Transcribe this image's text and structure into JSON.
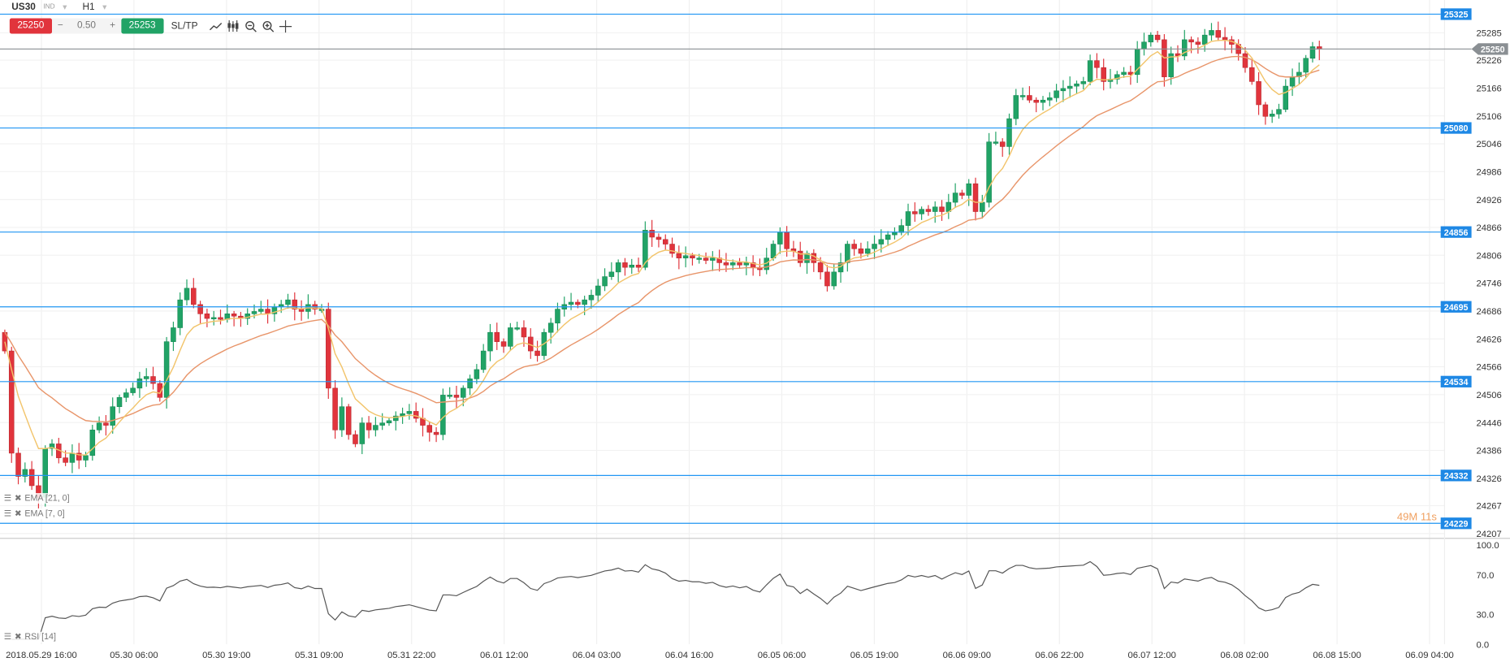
{
  "header": {
    "symbol": "US30",
    "type": "IND",
    "timeframe": "H1"
  },
  "trade": {
    "sell_price": "25250",
    "spread": "0.50",
    "minus": "−",
    "plus": "+",
    "buy_price": "25253",
    "sltp_label": "SL/TP"
  },
  "tools": [
    "line-chart-icon",
    "candles-icon",
    "zoom-out-icon",
    "zoom-in-icon",
    "crosshair-icon"
  ],
  "indicators": [
    {
      "label": "EMA [21, 0]",
      "period": 21,
      "color": "#e8956a"
    },
    {
      "label": "EMA [7, 0]",
      "period": 7,
      "color": "#f2c46b"
    }
  ],
  "rsi": {
    "label": "RSI [14]",
    "period": 14,
    "levels": [
      "100.0",
      "70.0",
      "30.0",
      "0.0"
    ]
  },
  "colors": {
    "up": "#21a366",
    "down": "#e1343c",
    "level_line": "#2196f3",
    "tag": "#1e88e5",
    "current": "#8a8f93"
  },
  "price_axis": [
    "25285",
    "25226",
    "25166",
    "25106",
    "25046",
    "24986",
    "24926",
    "24866",
    "24806",
    "24746",
    "24686",
    "24626",
    "24566",
    "24506",
    "24446",
    "24386",
    "24326",
    "24267",
    "24207"
  ],
  "levels": [
    "25325",
    "25080",
    "24856",
    "24695",
    "24534",
    "24332",
    "24229"
  ],
  "current_price": "25250",
  "countdown": "49M 11s",
  "time_axis": [
    "2018.05.29 16:00",
    "05.30 06:00",
    "05.30 19:00",
    "05.31 09:00",
    "05.31 22:00",
    "06.01 12:00",
    "06.04 03:00",
    "06.04 16:00",
    "06.05 06:00",
    "06.05 19:00",
    "06.06 09:00",
    "06.06 22:00",
    "06.07 12:00",
    "06.08 02:00",
    "06.08 15:00",
    "06.09 04:00"
  ],
  "first_open": 24640,
  "closes": [
    24600,
    24380,
    24330,
    24345,
    24310,
    24285,
    24390,
    24400,
    24370,
    24360,
    24380,
    24365,
    24375,
    24430,
    24445,
    24440,
    24480,
    24500,
    24510,
    24520,
    24540,
    24545,
    24530,
    24500,
    24620,
    24650,
    24710,
    24735,
    24700,
    24680,
    24670,
    24672,
    24668,
    24680,
    24675,
    24670,
    24680,
    24685,
    24690,
    24680,
    24695,
    24700,
    24710,
    24690,
    24685,
    24700,
    24690,
    24690,
    24520,
    24430,
    24480,
    24420,
    24400,
    24445,
    24430,
    24440,
    24445,
    24450,
    24460,
    24465,
    24470,
    24455,
    24440,
    24425,
    24420,
    24505,
    24505,
    24500,
    24520,
    24540,
    24560,
    24600,
    24640,
    24620,
    24610,
    24650,
    24650,
    24630,
    24600,
    24590,
    24640,
    24660,
    24690,
    24700,
    24705,
    24700,
    24710,
    24720,
    24740,
    24760,
    24770,
    24790,
    24780,
    24785,
    24780,
    24860,
    24845,
    24840,
    24830,
    24810,
    24800,
    24805,
    24800,
    24800,
    24795,
    24800,
    24790,
    24785,
    24790,
    24785,
    24790,
    24780,
    24775,
    24800,
    24830,
    24855,
    24820,
    24815,
    24790,
    24810,
    24790,
    24770,
    24740,
    24770,
    24790,
    24830,
    24820,
    24810,
    24820,
    24830,
    24840,
    24850,
    24855,
    24870,
    24900,
    24895,
    24905,
    24900,
    24910,
    24900,
    24920,
    24940,
    24935,
    24960,
    24900,
    24920,
    25050,
    25050,
    25040,
    25100,
    25150,
    25150,
    25140,
    25135,
    25140,
    25145,
    25160,
    25165,
    25170,
    25175,
    25180,
    25225,
    25210,
    25180,
    25185,
    25195,
    25200,
    25195,
    25250,
    25265,
    25280,
    25270,
    25190,
    25240,
    25235,
    25270,
    25265,
    25260,
    25280,
    25290,
    25275,
    25270,
    25260,
    25240,
    25210,
    25180,
    25130,
    25105,
    25110,
    25120,
    25170,
    25190,
    25200,
    25230,
    25255,
    25250
  ]
}
